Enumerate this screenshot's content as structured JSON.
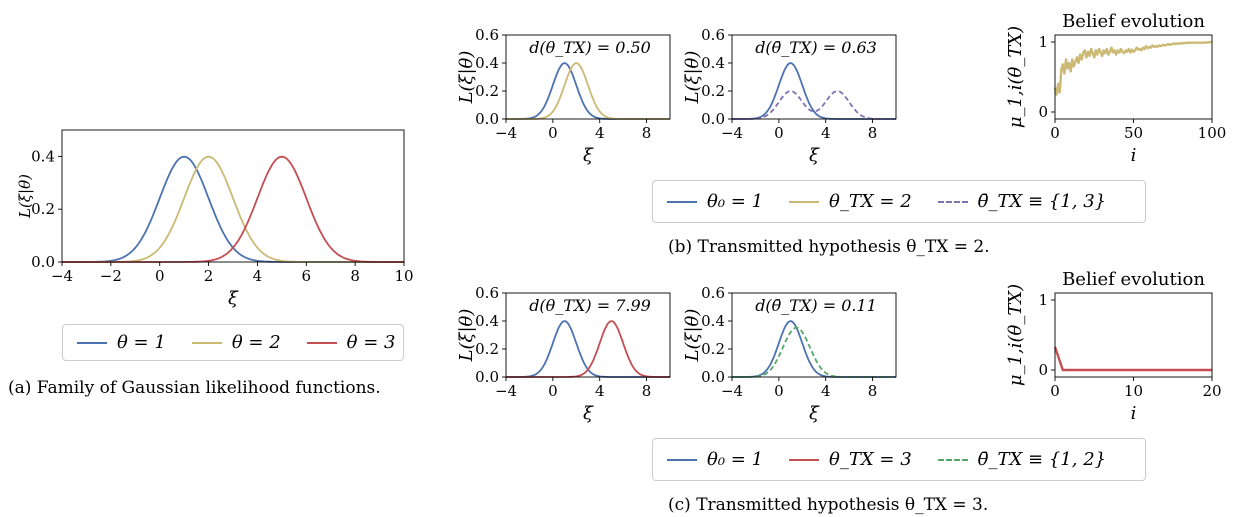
{
  "colors": {
    "blue": "#4c72b0",
    "gold": "#ccb974",
    "red": "#c44e52",
    "purple": "#8172b2",
    "green": "#55a868"
  },
  "captions": {
    "a": "(a) Family of Gaussian likelihood functions.",
    "b": "(b) Transmitted hypothesis θ_TX = 2.",
    "c": "(c) Transmitted hypothesis θ_TX = 3."
  },
  "legends": {
    "a": [
      {
        "label": "θ = 1",
        "color": "blue",
        "style": "solid"
      },
      {
        "label": "θ = 2",
        "color": "gold",
        "style": "solid"
      },
      {
        "label": "θ = 3",
        "color": "red",
        "style": "solid"
      }
    ],
    "b": [
      {
        "label": "θ₀ = 1",
        "color": "blue",
        "style": "solid"
      },
      {
        "label": "θ_TX = 2",
        "color": "gold",
        "style": "solid"
      },
      {
        "label": "θ̄_TX ≡ {1, 3}",
        "color": "purple",
        "style": "dashed"
      }
    ],
    "c": [
      {
        "label": "θ₀ = 1",
        "color": "blue",
        "style": "solid"
      },
      {
        "label": "θ_TX = 3",
        "color": "red",
        "style": "solid"
      },
      {
        "label": "θ̄_TX ≡ {1, 2}",
        "color": "green",
        "style": "dashed"
      }
    ]
  },
  "chart_data": [
    {
      "id": "a",
      "type": "line",
      "xlabel": "ξ",
      "ylabel": "L(ξ|θ)",
      "xlim": [
        -4,
        10
      ],
      "ylim": [
        0,
        0.5
      ],
      "xticks": [
        -4,
        -2,
        0,
        2,
        4,
        6,
        8,
        10
      ],
      "yticks": [
        0.0,
        0.2,
        0.4
      ],
      "series": [
        {
          "name": "θ = 1",
          "kind": "gauss",
          "mean": 1,
          "scale": 1,
          "color": "blue"
        },
        {
          "name": "θ = 2",
          "kind": "gauss",
          "mean": 2,
          "scale": 1,
          "color": "gold"
        },
        {
          "name": "θ = 3",
          "kind": "gauss",
          "mean": 5,
          "scale": 1,
          "color": "red"
        }
      ]
    },
    {
      "id": "b1",
      "type": "line",
      "xlabel": "ξ",
      "ylabel": "L(ξ|θ)",
      "xlim": [
        -4,
        10
      ],
      "ylim": [
        0,
        0.6
      ],
      "xticks": [
        -4,
        0,
        4,
        8
      ],
      "yticks": [
        0.0,
        0.2,
        0.4,
        0.6
      ],
      "annotation": "d(θ_TX) = 0.50",
      "series": [
        {
          "kind": "gauss",
          "mean": 1,
          "scale": 1,
          "color": "blue"
        },
        {
          "kind": "gauss",
          "mean": 2,
          "scale": 1,
          "color": "gold"
        }
      ]
    },
    {
      "id": "b2",
      "type": "line",
      "xlabel": "ξ",
      "ylabel": "L(ξ|θ)",
      "xlim": [
        -4,
        10
      ],
      "ylim": [
        0,
        0.6
      ],
      "xticks": [
        -4,
        0,
        4,
        8
      ],
      "yticks": [
        0.0,
        0.2,
        0.4,
        0.6
      ],
      "annotation": "d(θ̄_TX) = 0.63",
      "series": [
        {
          "kind": "gauss",
          "mean": 1,
          "scale": 1,
          "color": "blue"
        },
        {
          "kind": "mix",
          "means": [
            1,
            5
          ],
          "scale": 0.5,
          "color": "purple",
          "dashed": true
        }
      ]
    },
    {
      "id": "b3",
      "type": "line",
      "title": "Belief evolution",
      "xlabel": "i",
      "ylabel": "μ_1,i(θ_TX)",
      "xlim": [
        0,
        100
      ],
      "ylim": [
        -0.1,
        1.1
      ],
      "xticks": [
        0,
        50,
        100
      ],
      "yticks": [
        0,
        1
      ],
      "series": [
        {
          "color": "gold",
          "x": [
            0,
            1,
            2,
            3,
            4,
            5,
            6,
            7,
            8,
            9,
            10,
            11,
            12,
            13,
            14,
            15,
            16,
            17,
            18,
            19,
            20,
            21,
            22,
            23,
            24,
            25,
            26,
            27,
            28,
            29,
            30,
            31,
            32,
            33,
            34,
            35,
            36,
            37,
            38,
            39,
            40,
            41,
            42,
            43,
            44,
            45,
            46,
            47,
            48,
            49,
            50,
            51,
            52,
            53,
            54,
            55,
            56,
            57,
            58,
            59,
            60,
            61,
            62,
            63,
            64,
            65,
            66,
            67,
            68,
            69,
            70,
            71,
            72,
            73,
            74,
            75,
            76,
            77,
            78,
            79,
            80,
            85,
            90,
            95,
            100
          ],
          "y": [
            0.35,
            0.25,
            0.4,
            0.28,
            0.6,
            0.68,
            0.55,
            0.75,
            0.62,
            0.7,
            0.58,
            0.75,
            0.65,
            0.72,
            0.78,
            0.7,
            0.82,
            0.75,
            0.85,
            0.88,
            0.78,
            0.86,
            0.8,
            0.9,
            0.84,
            0.78,
            0.88,
            0.82,
            0.9,
            0.86,
            0.8,
            0.88,
            0.84,
            0.9,
            0.82,
            0.86,
            0.92,
            0.85,
            0.88,
            0.82,
            0.88,
            0.85,
            0.9,
            0.86,
            0.84,
            0.88,
            0.86,
            0.9,
            0.85,
            0.89,
            0.86,
            0.88,
            0.92,
            0.89,
            0.9,
            0.88,
            0.92,
            0.9,
            0.94,
            0.91,
            0.93,
            0.92,
            0.95,
            0.93,
            0.94,
            0.93,
            0.95,
            0.94,
            0.95,
            0.96,
            0.95,
            0.96,
            0.97,
            0.96,
            0.97,
            0.97,
            0.98,
            0.97,
            0.98,
            0.98,
            0.98,
            0.99,
            0.99,
            0.99,
            1.0
          ]
        }
      ]
    },
    {
      "id": "c1",
      "type": "line",
      "xlabel": "ξ",
      "ylabel": "L(ξ|θ)",
      "xlim": [
        -4,
        10
      ],
      "ylim": [
        0,
        0.6
      ],
      "xticks": [
        -4,
        0,
        4,
        8
      ],
      "yticks": [
        0.0,
        0.2,
        0.4,
        0.6
      ],
      "annotation": "d(θ_TX) = 7.99",
      "series": [
        {
          "kind": "gauss",
          "mean": 1,
          "scale": 1,
          "color": "blue"
        },
        {
          "kind": "gauss",
          "mean": 5,
          "scale": 1,
          "color": "red"
        }
      ]
    },
    {
      "id": "c2",
      "type": "line",
      "xlabel": "ξ",
      "ylabel": "L(ξ|θ)",
      "xlim": [
        -4,
        10
      ],
      "ylim": [
        0,
        0.6
      ],
      "xticks": [
        -4,
        0,
        4,
        8
      ],
      "yticks": [
        0.0,
        0.2,
        0.4,
        0.6
      ],
      "annotation": "d(θ̄_TX) = 0.11",
      "series": [
        {
          "kind": "gauss",
          "mean": 1,
          "scale": 1,
          "color": "blue"
        },
        {
          "kind": "mix",
          "means": [
            1,
            2
          ],
          "scale": 0.5,
          "color": "green",
          "dashed": true
        }
      ]
    },
    {
      "id": "c3",
      "type": "line",
      "title": "Belief evolution",
      "xlabel": "i",
      "ylabel": "μ_1,i(θ_TX)",
      "xlim": [
        0,
        20
      ],
      "ylim": [
        -0.1,
        1.1
      ],
      "xticks": [
        0,
        10,
        20
      ],
      "yticks": [
        0,
        1
      ],
      "series": [
        {
          "color": "red",
          "x": [
            0,
            1,
            2,
            5,
            10,
            15,
            20
          ],
          "y": [
            0.33,
            0.0,
            0.0,
            0.0,
            0.0,
            0.0,
            0.0
          ]
        }
      ]
    }
  ]
}
